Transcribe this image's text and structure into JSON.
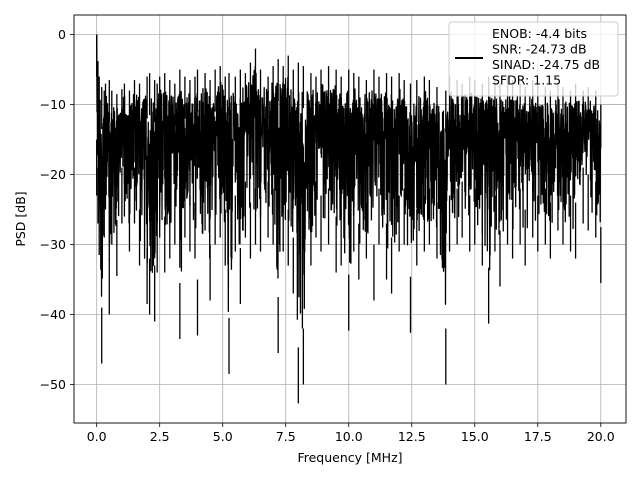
{
  "chart_data": {
    "type": "line",
    "xlabel": "Frequency [MHz]",
    "ylabel": "PSD [dB]",
    "xlim": [
      -0.9,
      21.0
    ],
    "ylim": [
      -55.5,
      2.8
    ],
    "xticks": [
      0.0,
      2.5,
      5.0,
      7.5,
      10.0,
      12.5,
      15.0,
      17.5,
      20.0
    ],
    "xtick_labels": [
      "0.0",
      "2.5",
      "5.0",
      "7.5",
      "10.0",
      "12.5",
      "15.0",
      "17.5",
      "20.0"
    ],
    "yticks": [
      0,
      -10,
      -20,
      -30,
      -40,
      -50
    ],
    "ytick_labels": [
      "0",
      "−10",
      "−20",
      "−30",
      "−40",
      "−50"
    ],
    "grid": true,
    "legend_position": "top-right",
    "legend_lines": [
      "ENOB: -4.4 bits",
      "SNR: -24.73 dB",
      "SINAD: -24.75 dB",
      "SFDR: 1.15"
    ],
    "series_color": "#000000",
    "series": [
      {
        "x": [
          0.0,
          0.05,
          0.1,
          0.2,
          0.3,
          0.35,
          0.5,
          0.6,
          0.8,
          1.0,
          1.1,
          1.3,
          1.5,
          1.7,
          2.0,
          2.1,
          2.3,
          2.4,
          2.5,
          2.7,
          2.9,
          3.1,
          3.3,
          3.5,
          3.7,
          3.9,
          4.0,
          4.3,
          4.5,
          4.7,
          4.9,
          5.1,
          5.25,
          5.5,
          5.7,
          5.9,
          6.1,
          6.3,
          6.5,
          6.8,
          7.0,
          7.2,
          7.4,
          7.6,
          7.8,
          8.0,
          8.2,
          8.5,
          8.7,
          8.9,
          9.2,
          9.5,
          9.7,
          10.0,
          10.2,
          10.4,
          10.7,
          11.0,
          11.2,
          11.5,
          11.7,
          12.0,
          12.2,
          12.45,
          12.7,
          13.0,
          13.2,
          13.5,
          13.85,
          14.0,
          14.3,
          14.5,
          14.8,
          15.0,
          15.3,
          15.55,
          15.8,
          16.0,
          16.3,
          16.5,
          16.8,
          17.0,
          17.3,
          17.5,
          17.8,
          18.0,
          18.3,
          18.5,
          18.8,
          19.0,
          19.3,
          19.5,
          19.8,
          20.0
        ],
        "y_high": [
          0.0,
          -3.8,
          -6.0,
          -7.5,
          -8.0,
          -7.0,
          -6.5,
          -8.0,
          -8.5,
          -7.8,
          -7.0,
          -8.0,
          -6.5,
          -7.0,
          -6.0,
          -5.5,
          -6.5,
          -7.0,
          -6.0,
          -5.5,
          -6.5,
          -7.0,
          -5.0,
          -6.0,
          -6.5,
          -6.0,
          -5.0,
          -5.5,
          -6.5,
          -5.0,
          -4.5,
          -6.0,
          -5.5,
          -6.0,
          -5.0,
          -5.5,
          -4.0,
          -2.0,
          -5.0,
          -6.0,
          -4.5,
          -3.5,
          -4.5,
          -3.0,
          -5.0,
          -4.0,
          -4.5,
          -5.5,
          -6.0,
          -5.0,
          -4.5,
          -5.0,
          -6.0,
          -5.0,
          -5.5,
          -6.0,
          -6.5,
          -5.0,
          -6.0,
          -5.5,
          -6.0,
          -5.5,
          -6.5,
          -7.0,
          -6.5,
          -6.0,
          -6.5,
          -7.5,
          -8.0,
          -6.0,
          -6.5,
          -7.0,
          -6.0,
          -6.5,
          -7.0,
          -6.0,
          -6.5,
          -7.0,
          -6.0,
          -6.5,
          -7.0,
          -7.5,
          -6.5,
          -7.0,
          -7.5,
          -8.0,
          -7.0,
          -7.5,
          -8.0,
          -7.0,
          -8.0,
          -7.5,
          -8.0,
          -10.0
        ],
        "y_low": [
          -23.0,
          -27.0,
          -31.5,
          -47.0,
          -29.0,
          -25.0,
          -40.0,
          -30.0,
          -34.5,
          -27.0,
          -26.0,
          -31.0,
          -27.0,
          -33.0,
          -38.5,
          -40.0,
          -41.0,
          -34.0,
          -29.0,
          -34.0,
          -32.0,
          -30.0,
          -43.5,
          -29.0,
          -31.0,
          -32.0,
          -43.0,
          -28.0,
          -38.0,
          -30.0,
          -29.0,
          -33.0,
          -48.5,
          -31.0,
          -38.5,
          -29.0,
          -32.0,
          -30.0,
          -31.0,
          -29.0,
          -30.0,
          -45.5,
          -31.0,
          -33.0,
          -37.0,
          -52.7,
          -50.0,
          -33.0,
          -29.0,
          -31.0,
          -30.0,
          -34.0,
          -33.0,
          -42.3,
          -31.0,
          -35.0,
          -32.0,
          -38.0,
          -30.0,
          -35.0,
          -37.0,
          -31.0,
          -30.0,
          -42.6,
          -33.0,
          -31.0,
          -30.0,
          -32.0,
          -50.0,
          -31.0,
          -30.0,
          -29.0,
          -31.0,
          -30.0,
          -33.0,
          -41.3,
          -31.0,
          -36.0,
          -30.0,
          -32.0,
          -30.0,
          -33.0,
          -29.0,
          -31.0,
          -30.0,
          -32.0,
          -28.0,
          -30.0,
          -31.0,
          -32.0,
          -27.0,
          -28.0,
          -29.0,
          -35.5
        ]
      }
    ]
  }
}
